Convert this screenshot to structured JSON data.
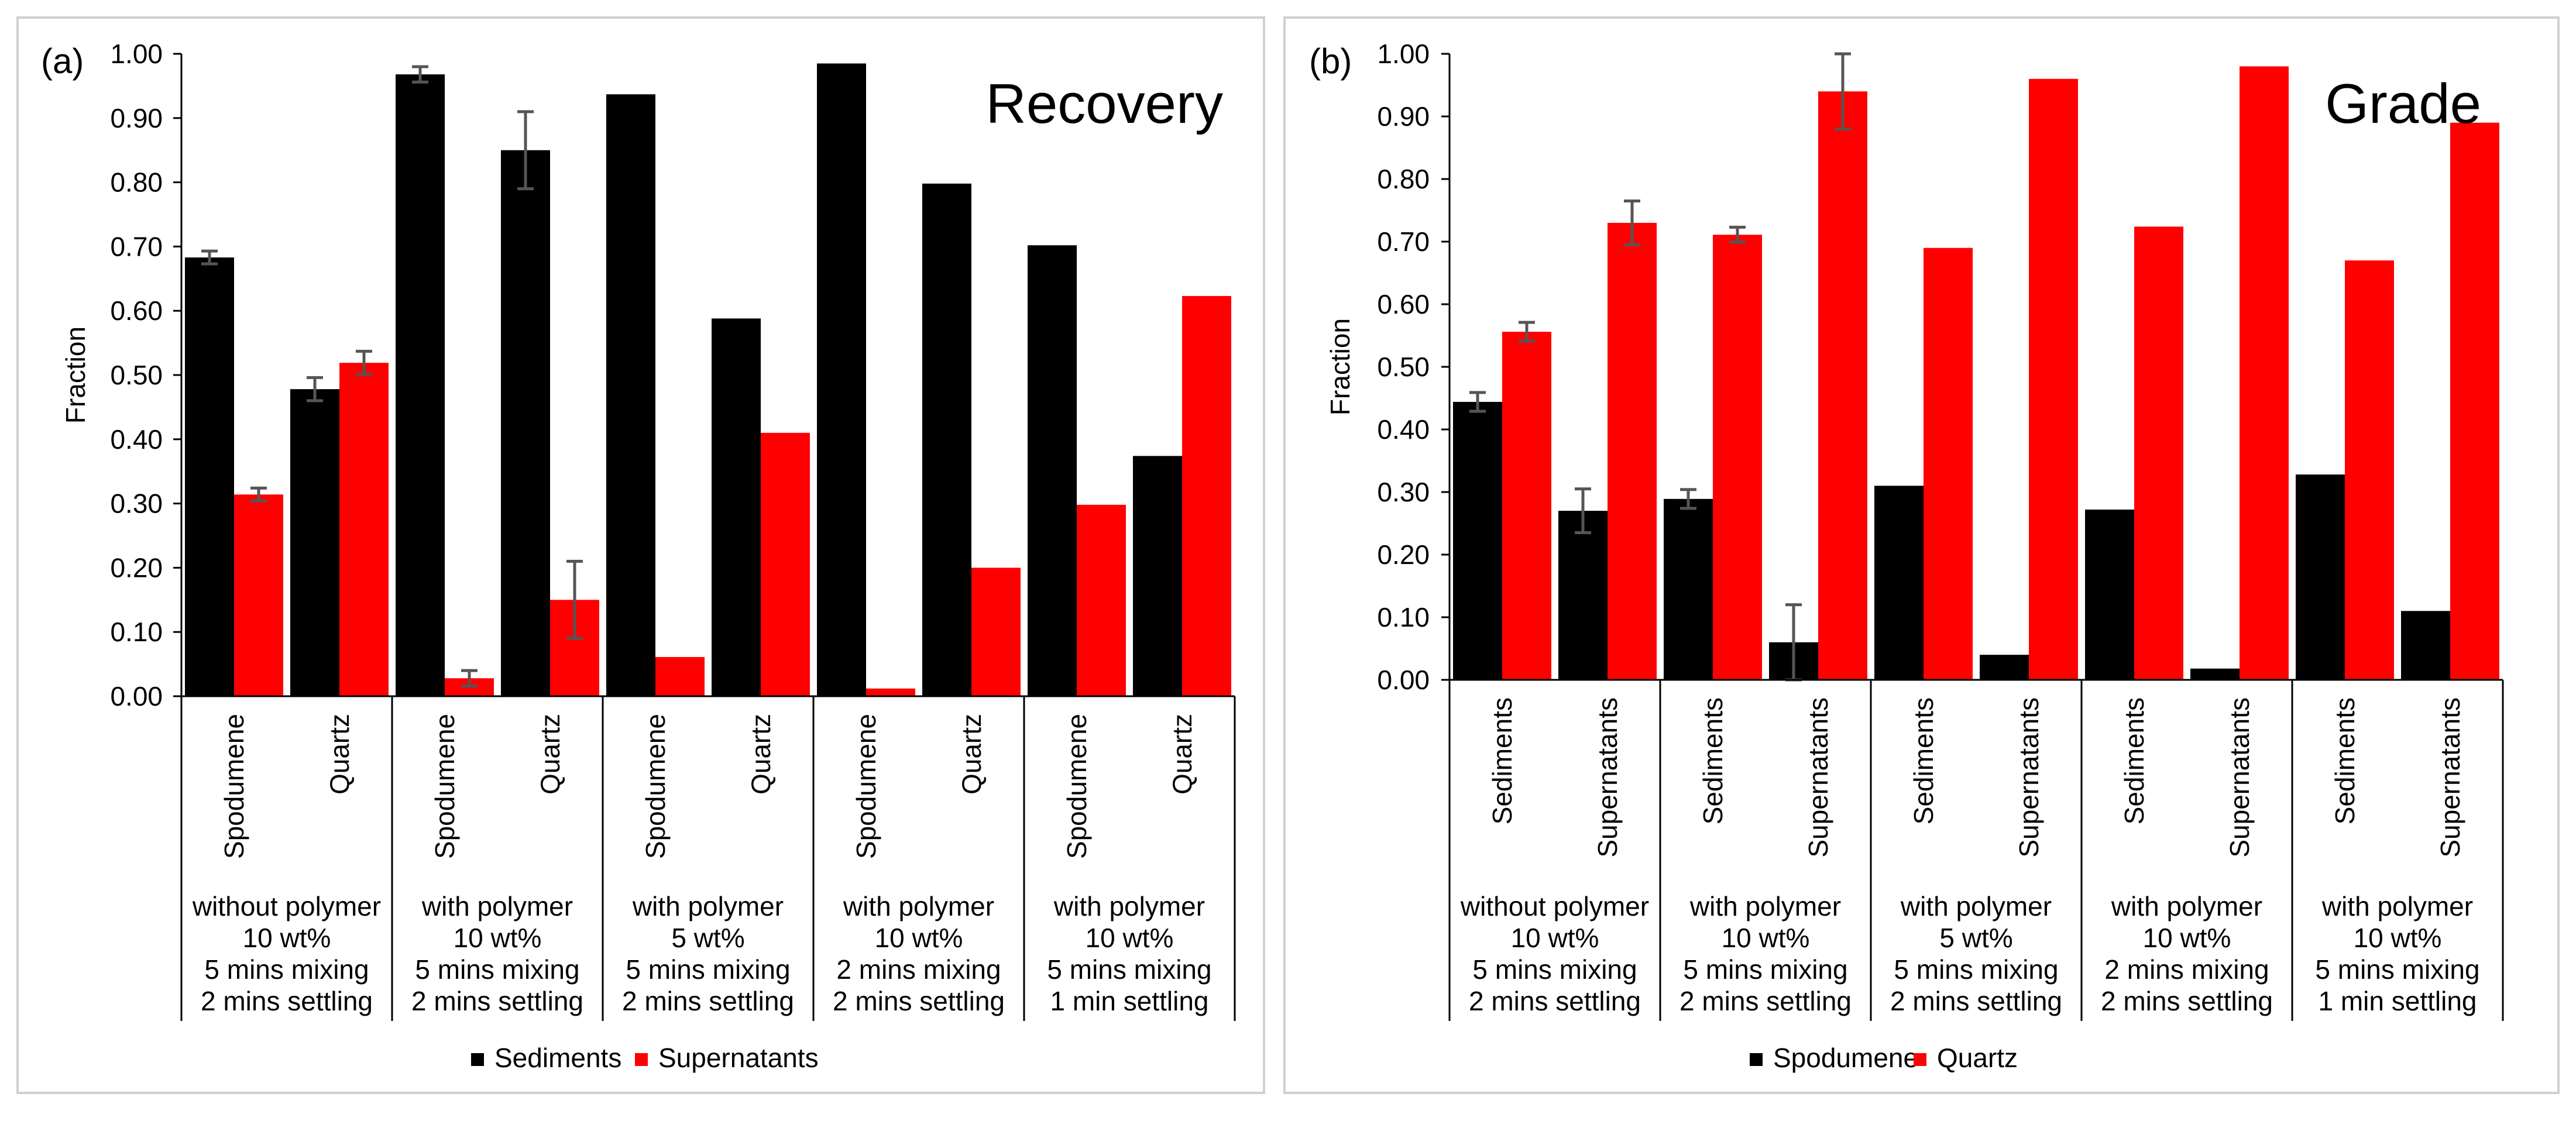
{
  "chart_data": [
    {
      "type": "bar",
      "panel_label": "(a)",
      "title": "Recovery",
      "ylabel": "Fraction",
      "xlabel": "",
      "ylim": [
        0,
        1.0
      ],
      "yticks": [
        "0.00",
        "0.10",
        "0.20",
        "0.30",
        "0.40",
        "0.50",
        "0.60",
        "0.70",
        "0.80",
        "0.90",
        "1.00"
      ],
      "categories": [
        "Spodumene",
        "Quartz",
        "Spodumene",
        "Quartz",
        "Spodumene",
        "Quartz",
        "Spodumene",
        "Quartz",
        "Spodumene",
        "Quartz"
      ],
      "groups": [
        {
          "lines": [
            "without polymer",
            "10 wt%",
            "5 mins mixing",
            "2 mins settling"
          ]
        },
        {
          "lines": [
            "with polymer",
            "10 wt%",
            "5 mins mixing",
            "2 mins settling"
          ]
        },
        {
          "lines": [
            "with polymer",
            "5 wt%",
            "5 mins mixing",
            "2 mins settling"
          ]
        },
        {
          "lines": [
            "with polymer",
            "10 wt%",
            "2 mins mixing",
            "2 mins settling"
          ]
        },
        {
          "lines": [
            "with polymer",
            "10 wt%",
            "5 mins mixing",
            "1 min settling"
          ]
        }
      ],
      "series": [
        {
          "name": "Sediments",
          "color": "#000000",
          "values": [
            0.683,
            0.478,
            0.968,
            0.85,
            0.937,
            0.588,
            0.985,
            0.798,
            0.702,
            0.374
          ],
          "errors": [
            0.01,
            0.018,
            0.012,
            0.06,
            null,
            null,
            null,
            null,
            null,
            null
          ]
        },
        {
          "name": "Supernatants",
          "color": "#ff0000",
          "values": [
            0.314,
            0.519,
            0.028,
            0.15,
            0.061,
            0.41,
            0.012,
            0.2,
            0.298,
            0.623
          ],
          "errors": [
            0.01,
            0.018,
            0.012,
            0.06,
            null,
            null,
            null,
            null,
            null,
            null
          ]
        }
      ],
      "legend": "bottom"
    },
    {
      "type": "bar",
      "panel_label": "(b)",
      "title": "Grade",
      "ylabel": "Fraction",
      "xlabel": "",
      "ylim": [
        0,
        1.0
      ],
      "yticks": [
        "0.00",
        "0.10",
        "0.20",
        "0.30",
        "0.40",
        "0.50",
        "0.60",
        "0.70",
        "0.80",
        "0.90",
        "1.00"
      ],
      "categories": [
        "Sediments",
        "Supernatants",
        "Sediments",
        "Supernatants",
        "Sediments",
        "Supernatants",
        "Sediments",
        "Supernatants",
        "Sediments",
        "Supernatants"
      ],
      "groups": [
        {
          "lines": [
            "without polymer",
            "10 wt%",
            "5 mins mixing",
            "2 mins settling"
          ]
        },
        {
          "lines": [
            "with polymer",
            "10 wt%",
            "5 mins mixing",
            "2 mins settling"
          ]
        },
        {
          "lines": [
            "with polymer",
            "5 wt%",
            "5 mins mixing",
            "2 mins settling"
          ]
        },
        {
          "lines": [
            "with polymer",
            "10 wt%",
            "2 mins mixing",
            "2 mins settling"
          ]
        },
        {
          "lines": [
            "with polymer",
            "10 wt%",
            "5 mins mixing",
            "1 min settling"
          ]
        }
      ],
      "series": [
        {
          "name": "Spodumene",
          "color": "#000000",
          "values": [
            0.444,
            0.27,
            0.289,
            0.06,
            0.31,
            0.04,
            0.272,
            0.018,
            0.328,
            0.11
          ],
          "errors": [
            0.015,
            0.035,
            0.015,
            0.06,
            null,
            null,
            null,
            null,
            null,
            null
          ]
        },
        {
          "name": "Quartz",
          "color": "#ff0000",
          "values": [
            0.556,
            0.73,
            0.711,
            0.94,
            0.69,
            0.96,
            0.724,
            0.98,
            0.67,
            0.89
          ],
          "errors": [
            0.015,
            0.035,
            0.012,
            0.06,
            null,
            null,
            null,
            null,
            null,
            null
          ]
        }
      ],
      "legend": "bottom"
    }
  ]
}
